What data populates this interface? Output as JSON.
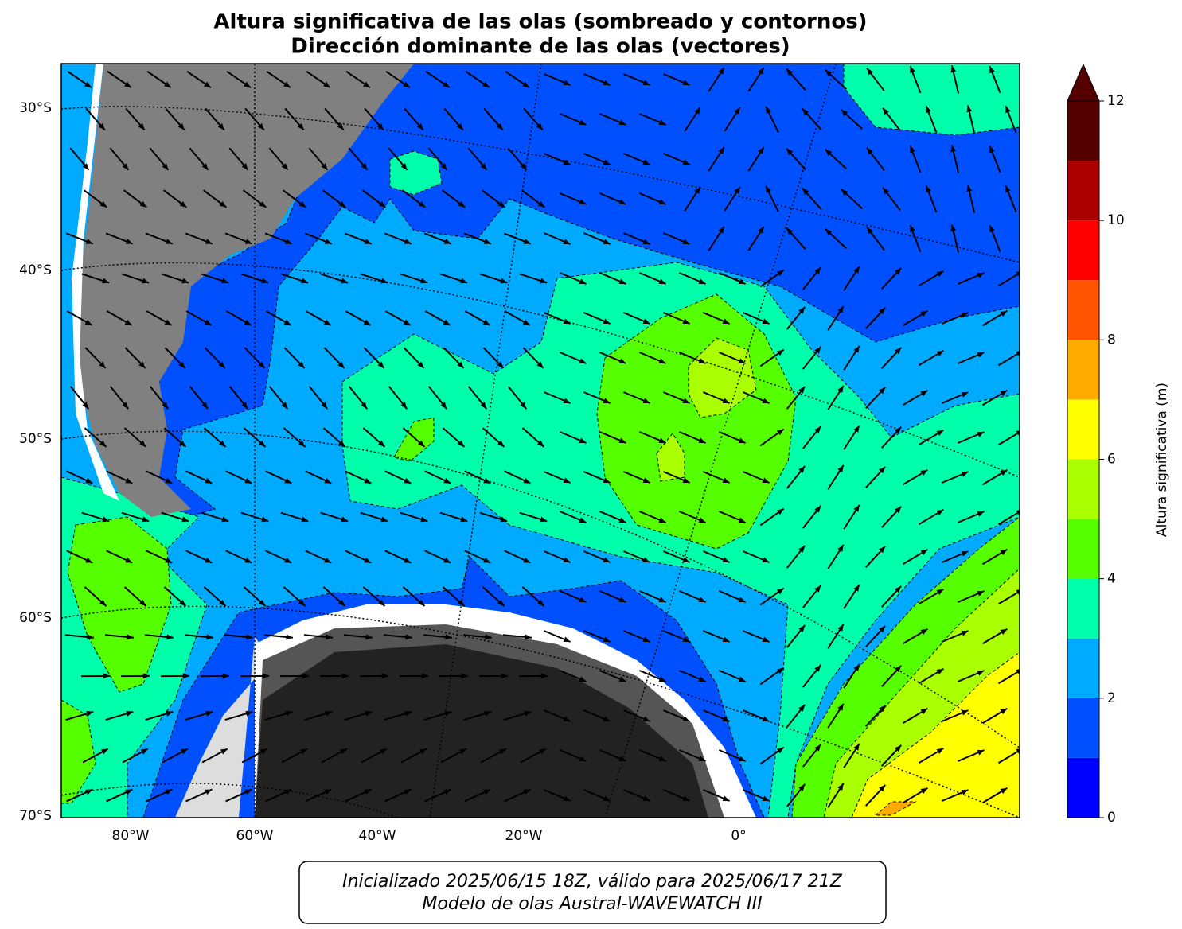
{
  "title": [
    "Altura significativa de las olas (sombreado y contornos)",
    "Dirección dominante de las olas (vectores)"
  ],
  "lat_labels": [
    "30°S",
    "40°S",
    "50°S",
    "60°S",
    "70°S"
  ],
  "lon_labels": [
    "80°W",
    "60°W",
    "40°W",
    "20°W",
    "0°"
  ],
  "colorbar": {
    "label": "Altura significativa (m)",
    "lim": [
      0,
      12
    ],
    "ticks": [
      0,
      2,
      4,
      6,
      8,
      10,
      12
    ],
    "bounds": [
      0,
      1,
      2,
      3,
      4,
      5,
      6,
      7,
      8,
      9,
      10,
      11,
      12
    ],
    "colors": [
      "#0000ff",
      "#0050ff",
      "#00aaff",
      "#00ffaa",
      "#55ff00",
      "#aaff00",
      "#ffff00",
      "#ffaa00",
      "#ff5500",
      "#ff0000",
      "#aa0000",
      "#550000"
    ],
    "extend": "max"
  },
  "footer": [
    "Inicializado 2025/06/15 18Z, válido para 2025/06/17 21Z",
    "Modelo de olas Austral-WAVEWATCH III"
  ]
}
